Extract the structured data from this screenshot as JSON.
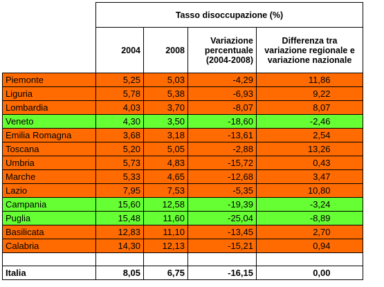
{
  "header": {
    "group_title": "Tasso disoccupazione (%)",
    "col_2004": "2004",
    "col_2008": "2008",
    "col_var_l1": "Variazione",
    "col_var_l2": "percentuale",
    "col_var_l3": "(2004-2008)",
    "col_diff_l1": "Differenza tra",
    "col_diff_l2": "variazione regionale e",
    "col_diff_l3": "variazione nazionale"
  },
  "rows": [
    {
      "region": "Piemonte",
      "v2004": "5,25",
      "v2008": "5,03",
      "var": "-4,29",
      "diff": "11,86",
      "color": "#ff6b00"
    },
    {
      "region": "Liguria",
      "v2004": "5,78",
      "v2008": "5,38",
      "var": "-6,93",
      "diff": "9,22",
      "color": "#ff6b00"
    },
    {
      "region": "Lombardia",
      "v2004": "4,03",
      "v2008": "3,70",
      "var": "-8,07",
      "diff": "8,07",
      "color": "#ff6b00"
    },
    {
      "region": "Veneto",
      "v2004": "4,30",
      "v2008": "3,50",
      "var": "-18,60",
      "diff": "-2,46",
      "color": "#66ff33"
    },
    {
      "region": "Emilia Romagna",
      "v2004": "3,68",
      "v2008": "3,18",
      "var": "-13,61",
      "diff": "2,54",
      "color": "#ff6b00"
    },
    {
      "region": "Toscana",
      "v2004": "5,20",
      "v2008": "5,05",
      "var": "-2,88",
      "diff": "13,26",
      "color": "#ff6b00"
    },
    {
      "region": "Umbria",
      "v2004": "5,73",
      "v2008": "4,83",
      "var": "-15,72",
      "diff": "0,43",
      "color": "#ff6b00"
    },
    {
      "region": "Marche",
      "v2004": "5,33",
      "v2008": "4,65",
      "var": "-12,68",
      "diff": "3,47",
      "color": "#ff6b00"
    },
    {
      "region": "Lazio",
      "v2004": "7,95",
      "v2008": "7,53",
      "var": "-5,35",
      "diff": "10,80",
      "color": "#ff6b00"
    },
    {
      "region": "Campania",
      "v2004": "15,60",
      "v2008": "12,58",
      "var": "-19,39",
      "diff": "-3,24",
      "color": "#66ff33"
    },
    {
      "region": "Puglia",
      "v2004": "15,48",
      "v2008": "11,60",
      "var": "-25,04",
      "diff": "-8,89",
      "color": "#66ff33"
    },
    {
      "region": "Basilicata",
      "v2004": "12,83",
      "v2008": "11,10",
      "var": "-13,45",
      "diff": "2,70",
      "color": "#ff6b00"
    },
    {
      "region": "Calabria",
      "v2004": "14,30",
      "v2008": "12,13",
      "var": "-15,21",
      "diff": "0,94",
      "color": "#ff6b00"
    }
  ],
  "total": {
    "region": "Italia",
    "v2004": "8,05",
    "v2008": "6,75",
    "var": "-16,15",
    "diff": "0,00"
  }
}
